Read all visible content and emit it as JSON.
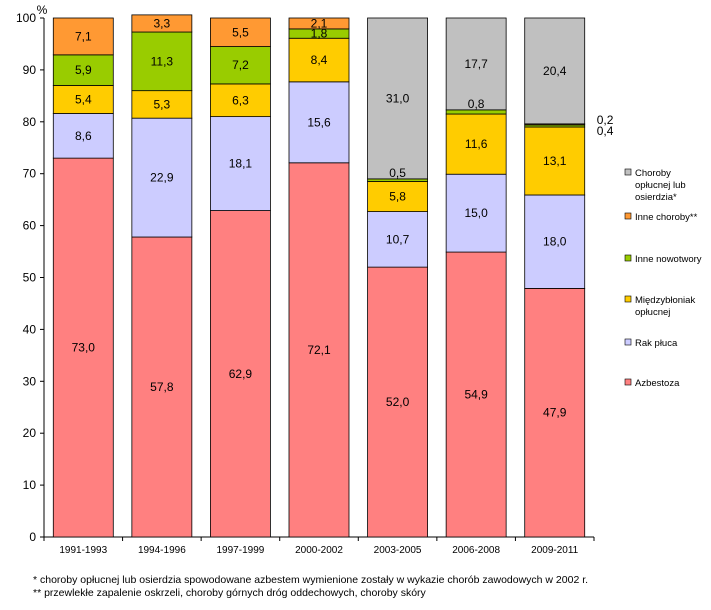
{
  "chart_data": {
    "type": "bar",
    "stacked": true,
    "ylabel": "%",
    "ylim": [
      0,
      100
    ],
    "yticks": [
      "0",
      "10",
      "20",
      "30",
      "40",
      "50",
      "60",
      "70",
      "80",
      "90",
      "100"
    ],
    "categories": [
      "1991-1993",
      "1994-1996",
      "1997-1999",
      "2000-2002",
      "2003-2005",
      "2006-2008",
      "2009-2011"
    ],
    "series": [
      {
        "name": "Azbestoza",
        "color": "#ff8080",
        "values": [
          73.0,
          57.8,
          62.9,
          72.1,
          52.0,
          54.9,
          47.9
        ],
        "labels": [
          "73,0",
          "57,8",
          "62,9",
          "72,1",
          "52,0",
          "54,9",
          "47,9"
        ]
      },
      {
        "name": "Rak płuca",
        "color": "#ccccff",
        "values": [
          8.6,
          22.9,
          18.1,
          15.6,
          10.7,
          15.0,
          18.0
        ],
        "labels": [
          "8,6",
          "22,9",
          "18,1",
          "15,6",
          "10,7",
          "15,0",
          "18,0"
        ]
      },
      {
        "name": "Międzybłoniak opłucnej",
        "color": "#ffcc00",
        "values": [
          5.4,
          5.3,
          6.3,
          8.4,
          5.8,
          11.6,
          13.1
        ],
        "labels": [
          "5,4",
          "5,3",
          "6,3",
          "8,4",
          "5,8",
          "11,6",
          "13,1"
        ]
      },
      {
        "name": "Inne nowotwory",
        "color": "#99cc00",
        "values": [
          5.9,
          11.3,
          7.2,
          1.8,
          0.5,
          0.8,
          0.4
        ],
        "labels": [
          "5,9",
          "11,3",
          "7,2",
          "1,8",
          "0,5",
          "0,8",
          "0,4"
        ]
      },
      {
        "name": "Inne choroby**",
        "color": "#ff9933",
        "values": [
          7.1,
          3.3,
          5.5,
          2.1,
          0,
          0,
          0.2
        ],
        "labels": [
          "7,1",
          "3,3",
          "5,5",
          "2,1",
          "",
          "",
          "0,2"
        ]
      },
      {
        "name": "Choroby opłucnej lub osierdzia*",
        "color": "#c0c0c0",
        "values": [
          0,
          0,
          0,
          0,
          31.0,
          17.7,
          20.4
        ],
        "labels": [
          "",
          "",
          "",
          "",
          "31,0",
          "17,7",
          "20,4"
        ]
      }
    ],
    "legend_order": [
      5,
      4,
      3,
      2,
      1,
      0
    ],
    "legend_lines": [
      [
        "Choroby",
        "opłucnej lub",
        "osierdzia*"
      ],
      [
        "Inne choroby**"
      ],
      [
        "Inne nowotwory"
      ],
      [
        "Międzybłoniak",
        "opłucnej"
      ],
      [
        "Rak płuca"
      ],
      [
        "Azbestoza"
      ]
    ],
    "legend_position": "right"
  },
  "footnotes": [
    "* choroby opłucnej lub osierdzia spowodowane azbestem wymienione zostały w wykazie chorób zawodowych w 2002 r.",
    "** przewlekłe zapalenie oskrzeli, choroby górnych dróg oddechowych, choroby skóry"
  ]
}
